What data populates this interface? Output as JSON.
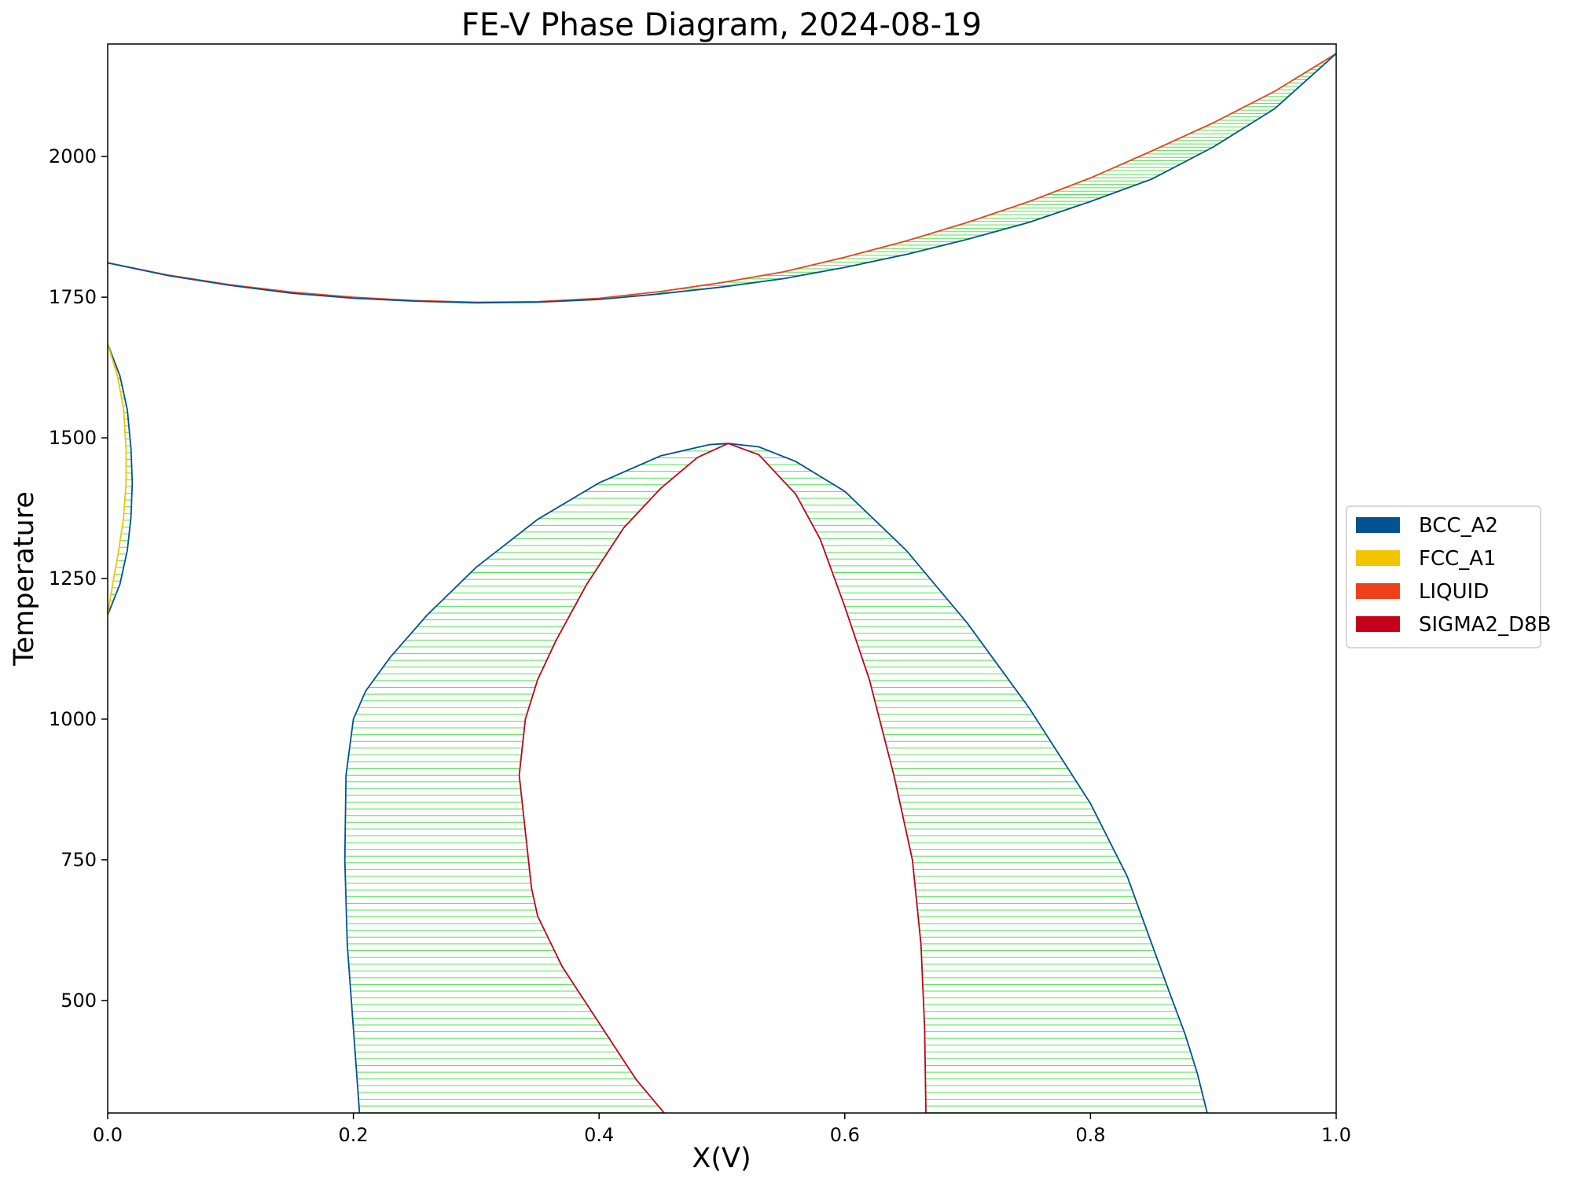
{
  "chart_data": {
    "type": "line",
    "title": "FE-V Phase Diagram, 2024-08-19",
    "xlabel": "X(V)",
    "ylabel": "Temperature",
    "xlim": [
      0.0,
      1.0
    ],
    "ylim": [
      300,
      2200
    ],
    "xticks": [
      0.0,
      0.2,
      0.4,
      0.6,
      0.8,
      1.0
    ],
    "xtick_labels": [
      "0.0",
      "0.2",
      "0.4",
      "0.6",
      "0.8",
      "1.0"
    ],
    "yticks": [
      500,
      750,
      1000,
      1250,
      1500,
      1750,
      2000
    ],
    "ytick_labels": [
      "500",
      "750",
      "1000",
      "1250",
      "1500",
      "1750",
      "2000"
    ],
    "grid": false,
    "legend_position": "right",
    "legend": [
      {
        "label": "BCC_A2",
        "color": "#005293"
      },
      {
        "label": "FCC_A1",
        "color": "#f2c500"
      },
      {
        "label": "LIQUID",
        "color": "#f0401a"
      },
      {
        "label": "SIGMA2_D8B",
        "color": "#c4001a"
      }
    ],
    "tieline_color": "#00dd00",
    "regions": [
      {
        "phases": [
          "LIQUID",
          "BCC_A2"
        ],
        "boundaries": [
          {
            "phase": "LIQUID",
            "points": [
              [
                0.0,
                1811
              ],
              [
                0.05,
                1789
              ],
              [
                0.1,
                1772
              ],
              [
                0.15,
                1759
              ],
              [
                0.2,
                1750
              ],
              [
                0.25,
                1744
              ],
              [
                0.3,
                1741
              ],
              [
                0.35,
                1742
              ],
              [
                0.4,
                1748
              ],
              [
                0.45,
                1760
              ],
              [
                0.5,
                1776
              ],
              [
                0.55,
                1795
              ],
              [
                0.6,
                1821
              ],
              [
                0.65,
                1850
              ],
              [
                0.7,
                1883
              ],
              [
                0.75,
                1920
              ],
              [
                0.8,
                1962
              ],
              [
                0.85,
                2010
              ],
              [
                0.9,
                2060
              ],
              [
                0.95,
                2116
              ],
              [
                1.0,
                2183
              ]
            ]
          },
          {
            "phase": "BCC_A2",
            "points": [
              [
                0.0,
                1811
              ],
              [
                0.05,
                1788
              ],
              [
                0.1,
                1771
              ],
              [
                0.15,
                1757
              ],
              [
                0.2,
                1748
              ],
              [
                0.25,
                1743
              ],
              [
                0.3,
                1740
              ],
              [
                0.35,
                1741
              ],
              [
                0.4,
                1746
              ],
              [
                0.45,
                1756
              ],
              [
                0.5,
                1768
              ],
              [
                0.55,
                1783
              ],
              [
                0.6,
                1803
              ],
              [
                0.65,
                1826
              ],
              [
                0.7,
                1853
              ],
              [
                0.75,
                1883
              ],
              [
                0.8,
                1920
              ],
              [
                0.85,
                1960
              ],
              [
                0.9,
                2017
              ],
              [
                0.95,
                2085
              ],
              [
                1.0,
                2183
              ]
            ]
          }
        ]
      },
      {
        "phases": [
          "BCC_A2",
          "FCC_A1"
        ],
        "boundaries": [
          {
            "phase": "BCC_A2",
            "points": [
              [
                0.0,
                1667
              ],
              [
                0.01,
                1610
              ],
              [
                0.016,
                1550
              ],
              [
                0.019,
                1480
              ],
              [
                0.02,
                1420
              ],
              [
                0.019,
                1360
              ],
              [
                0.016,
                1300
              ],
              [
                0.01,
                1240
              ],
              [
                0.0,
                1185
              ]
            ]
          },
          {
            "phase": "FCC_A1",
            "points": [
              [
                0.0,
                1667
              ],
              [
                0.008,
                1610
              ],
              [
                0.013,
                1550
              ],
              [
                0.015,
                1480
              ],
              [
                0.015,
                1420
              ],
              [
                0.013,
                1360
              ],
              [
                0.009,
                1300
              ],
              [
                0.004,
                1240
              ],
              [
                0.0,
                1185
              ]
            ]
          }
        ]
      },
      {
        "phases": [
          "BCC_A2",
          "SIGMA2_D8B"
        ],
        "boundaries": [
          {
            "phase": "BCC_A2",
            "points": [
              [
                0.205,
                300
              ],
              [
                0.2,
                450
              ],
              [
                0.195,
                600
              ],
              [
                0.193,
                750
              ],
              [
                0.194,
                900
              ],
              [
                0.2,
                1000
              ],
              [
                0.21,
                1050
              ],
              [
                0.23,
                1110
              ],
              [
                0.26,
                1185
              ],
              [
                0.3,
                1270
              ],
              [
                0.35,
                1355
              ],
              [
                0.4,
                1420
              ],
              [
                0.45,
                1468
              ],
              [
                0.49,
                1488
              ],
              [
                0.505,
                1490
              ],
              [
                0.53,
                1484
              ],
              [
                0.56,
                1458
              ],
              [
                0.6,
                1405
              ],
              [
                0.65,
                1300
              ],
              [
                0.7,
                1170
              ],
              [
                0.75,
                1020
              ],
              [
                0.8,
                850
              ],
              [
                0.83,
                720
              ],
              [
                0.85,
                600
              ],
              [
                0.865,
                510
              ],
              [
                0.877,
                440
              ],
              [
                0.887,
                370
              ],
              [
                0.895,
                300
              ]
            ]
          },
          {
            "phase": "SIGMA2_D8B",
            "points": [
              [
                0.453,
                300
              ],
              [
                0.43,
                360
              ],
              [
                0.4,
                460
              ],
              [
                0.37,
                560
              ],
              [
                0.35,
                650
              ],
              [
                0.345,
                700
              ],
              [
                0.34,
                800
              ],
              [
                0.335,
                900
              ],
              [
                0.34,
                1000
              ],
              [
                0.35,
                1070
              ],
              [
                0.365,
                1140
              ],
              [
                0.39,
                1240
              ],
              [
                0.42,
                1340
              ],
              [
                0.45,
                1410
              ],
              [
                0.48,
                1465
              ],
              [
                0.505,
                1490
              ],
              [
                0.53,
                1470
              ],
              [
                0.56,
                1400
              ],
              [
                0.58,
                1320
              ],
              [
                0.6,
                1200
              ],
              [
                0.62,
                1070
              ],
              [
                0.64,
                900
              ],
              [
                0.655,
                750
              ],
              [
                0.662,
                600
              ],
              [
                0.665,
                450
              ],
              [
                0.666,
                300
              ]
            ]
          }
        ]
      }
    ]
  }
}
